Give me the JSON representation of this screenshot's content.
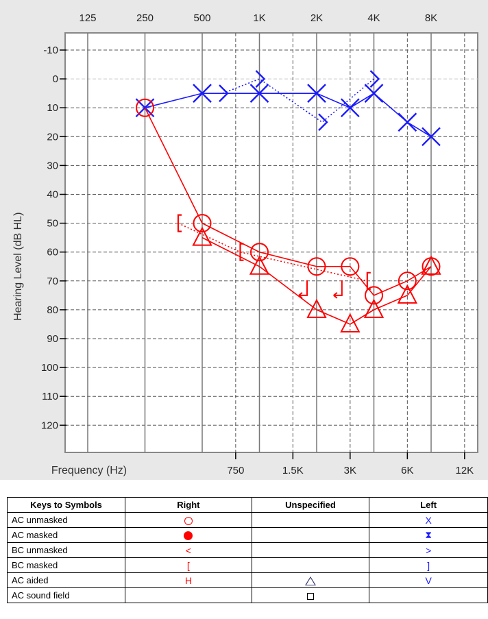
{
  "chart_data": {
    "type": "line",
    "title": "",
    "xlabel": "Frequency (Hz)",
    "ylabel": "Hearing Level (dB HL)",
    "x_ticks_top": [
      "125",
      "250",
      "500",
      "1K",
      "2K",
      "4K",
      "8K"
    ],
    "x_ticks_bottom": [
      "750",
      "1.5K",
      "3K",
      "6K",
      "12K"
    ],
    "y_ticks": [
      "-10",
      "0",
      "10",
      "20",
      "30",
      "40",
      "50",
      "60",
      "70",
      "80",
      "90",
      "100",
      "110",
      "120"
    ],
    "ylim": [
      -10,
      120
    ],
    "y_inverted": true,
    "x_scale": "log2",
    "grid": true,
    "colors": {
      "right": "#ff0000",
      "left": "#1a1aff",
      "unspecified": "#333366"
    },
    "series": [
      {
        "name": "AC unmasked",
        "ear": "Left",
        "symbol": "X",
        "color": "#1a1aff",
        "points": [
          [
            250,
            10
          ],
          [
            500,
            5
          ],
          [
            1000,
            5
          ],
          [
            2000,
            5
          ],
          [
            3000,
            10
          ],
          [
            4000,
            5
          ],
          [
            6000,
            15
          ],
          [
            8000,
            20
          ]
        ]
      },
      {
        "name": "BC unmasked",
        "ear": "Left",
        "symbol": ">",
        "color": "#1a1aff",
        "points": [
          [
            500,
            5
          ],
          [
            1000,
            0
          ],
          [
            2000,
            15
          ],
          [
            4000,
            0
          ]
        ]
      },
      {
        "name": "AC unmasked",
        "ear": "Right",
        "symbol": "O",
        "color": "#ff0000",
        "points": [
          [
            250,
            10
          ],
          [
            500,
            50
          ],
          [
            1000,
            60
          ],
          [
            2000,
            65
          ],
          [
            3000,
            65
          ],
          [
            4000,
            75
          ],
          [
            6000,
            70
          ],
          [
            8000,
            65
          ]
        ]
      },
      {
        "name": "BC masked",
        "ear": "Right",
        "symbol": "[",
        "color": "#ff0000",
        "points": [
          [
            500,
            50
          ],
          [
            1000,
            60
          ],
          [
            3000,
            70
          ]
        ]
      },
      {
        "name": "BC unmasked",
        "ear": "Right",
        "symbol": "<",
        "color": "#ff0000",
        "points": [
          [
            2000,
            75
          ],
          [
            3000,
            75
          ]
        ]
      },
      {
        "name": "AC aided",
        "ear": "Unspecified",
        "symbol": "triangle",
        "color": "#ff0000",
        "points": [
          [
            500,
            55
          ],
          [
            1000,
            65
          ],
          [
            2000,
            80
          ],
          [
            3000,
            85
          ],
          [
            4000,
            80
          ],
          [
            6000,
            75
          ],
          [
            8000,
            65
          ]
        ]
      }
    ]
  },
  "legend": {
    "headers": [
      "Keys to Symbols",
      "Right",
      "Unspecified",
      "Left"
    ],
    "rows": [
      {
        "label": "AC unmasked",
        "right": "ring",
        "unspecified": "",
        "left": "X"
      },
      {
        "label": "AC masked",
        "right": "dot",
        "unspecified": "",
        "left": "⧗"
      },
      {
        "label": "BC unmasked",
        "right": "<",
        "unspecified": "",
        "left": ">"
      },
      {
        "label": "BC masked",
        "right": "[",
        "unspecified": "",
        "left": "]"
      },
      {
        "label": "AC aided",
        "right": "H",
        "unspecified": "triangle",
        "left": "V"
      },
      {
        "label": "AC sound field",
        "right": "",
        "unspecified": "square",
        "left": ""
      }
    ]
  }
}
